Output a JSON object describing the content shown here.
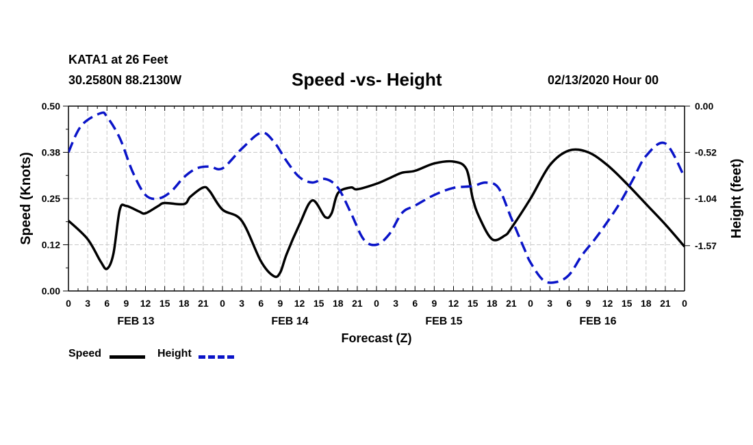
{
  "header": {
    "station": "KATA1 at 26 Feet",
    "coords": "30.2580N 88.2130W",
    "title": "Speed -vs- Height",
    "issued": "02/13/2020 Hour 00"
  },
  "legend": {
    "speed_label": "Speed",
    "height_label": "Height"
  },
  "colors": {
    "speed": "#000000",
    "height": "#0a14c8",
    "grid": "#c8c8c8"
  },
  "chart_data": {
    "type": "line",
    "title": "Speed -vs- Height",
    "xlabel": "Forecast (Z)",
    "ylabel": "Speed (Knots)",
    "y2label": "Height (feet)",
    "xlim": [
      0,
      96
    ],
    "ylim": [
      0,
      0.5
    ],
    "y2lim": [
      -2.08,
      0.0
    ],
    "yticks": [
      "0.00",
      "0.12",
      "0.25",
      "0.38",
      "0.50"
    ],
    "yticks_values": [
      0,
      0.125,
      0.25,
      0.375,
      0.5
    ],
    "y2ticks": [
      "0.00",
      "-0.52",
      "-1.04",
      "-1.57"
    ],
    "y2ticks_values": [
      0.0,
      -0.52,
      -1.04,
      -1.57
    ],
    "xticks": [
      "0",
      "3",
      "6",
      "9",
      "12",
      "15",
      "18",
      "21",
      "0",
      "3",
      "6",
      "9",
      "12",
      "15",
      "18",
      "21",
      "0",
      "3",
      "6",
      "9",
      "12",
      "15",
      "18",
      "21",
      "0",
      "3",
      "6",
      "9",
      "12",
      "15",
      "18",
      "21",
      "0"
    ],
    "day_labels": [
      "FEB 13",
      "FEB 14",
      "FEB 15",
      "FEB 16"
    ],
    "day_label_hours": [
      10.5,
      34.5,
      58.5,
      82.5
    ],
    "grid": true,
    "series": [
      {
        "name": "Speed",
        "axis": "left",
        "style": "solid",
        "x": [
          0,
          3,
          5,
          6,
          7,
          8,
          9,
          11,
          12,
          14,
          15,
          18,
          19,
          21,
          22,
          24,
          27,
          30,
          32,
          33,
          34,
          36,
          38,
          40,
          41,
          42,
          44,
          45,
          48,
          50,
          52,
          54,
          57,
          60,
          62,
          63,
          64,
          66,
          68,
          69,
          72,
          75,
          78,
          81,
          84,
          87,
          90,
          93,
          96
        ],
        "y": [
          0.19,
          0.14,
          0.08,
          0.06,
          0.1,
          0.22,
          0.23,
          0.215,
          0.21,
          0.23,
          0.238,
          0.235,
          0.255,
          0.28,
          0.27,
          0.22,
          0.19,
          0.08,
          0.04,
          0.05,
          0.1,
          0.18,
          0.245,
          0.2,
          0.21,
          0.265,
          0.28,
          0.275,
          0.29,
          0.305,
          0.32,
          0.325,
          0.345,
          0.35,
          0.33,
          0.25,
          0.2,
          0.14,
          0.15,
          0.17,
          0.25,
          0.34,
          0.38,
          0.375,
          0.34,
          0.29,
          0.235,
          0.18,
          0.12
        ]
      },
      {
        "name": "Height",
        "axis": "right",
        "style": "dashed",
        "x": [
          0,
          2,
          5,
          6,
          8,
          10,
          12,
          14,
          16,
          18,
          20,
          22,
          24,
          27,
          30,
          32,
          34,
          36,
          38,
          40,
          42,
          44,
          46,
          48,
          50,
          52,
          54,
          57,
          60,
          63,
          65,
          67,
          69,
          71,
          72,
          74,
          76,
          78,
          80,
          82,
          84,
          86,
          88,
          90,
          93,
          96
        ],
        "y": [
          -0.52,
          -0.22,
          -0.08,
          -0.12,
          -0.36,
          -0.74,
          -1.0,
          -1.04,
          -0.96,
          -0.8,
          -0.7,
          -0.68,
          -0.7,
          -0.48,
          -0.3,
          -0.4,
          -0.62,
          -0.8,
          -0.86,
          -0.82,
          -0.92,
          -1.2,
          -1.5,
          -1.56,
          -1.44,
          -1.2,
          -1.12,
          -1.0,
          -0.92,
          -0.9,
          -0.86,
          -0.92,
          -1.26,
          -1.6,
          -1.76,
          -1.96,
          -1.98,
          -1.9,
          -1.68,
          -1.5,
          -1.3,
          -1.08,
          -0.82,
          -0.56,
          -0.42,
          -0.8
        ]
      }
    ]
  }
}
